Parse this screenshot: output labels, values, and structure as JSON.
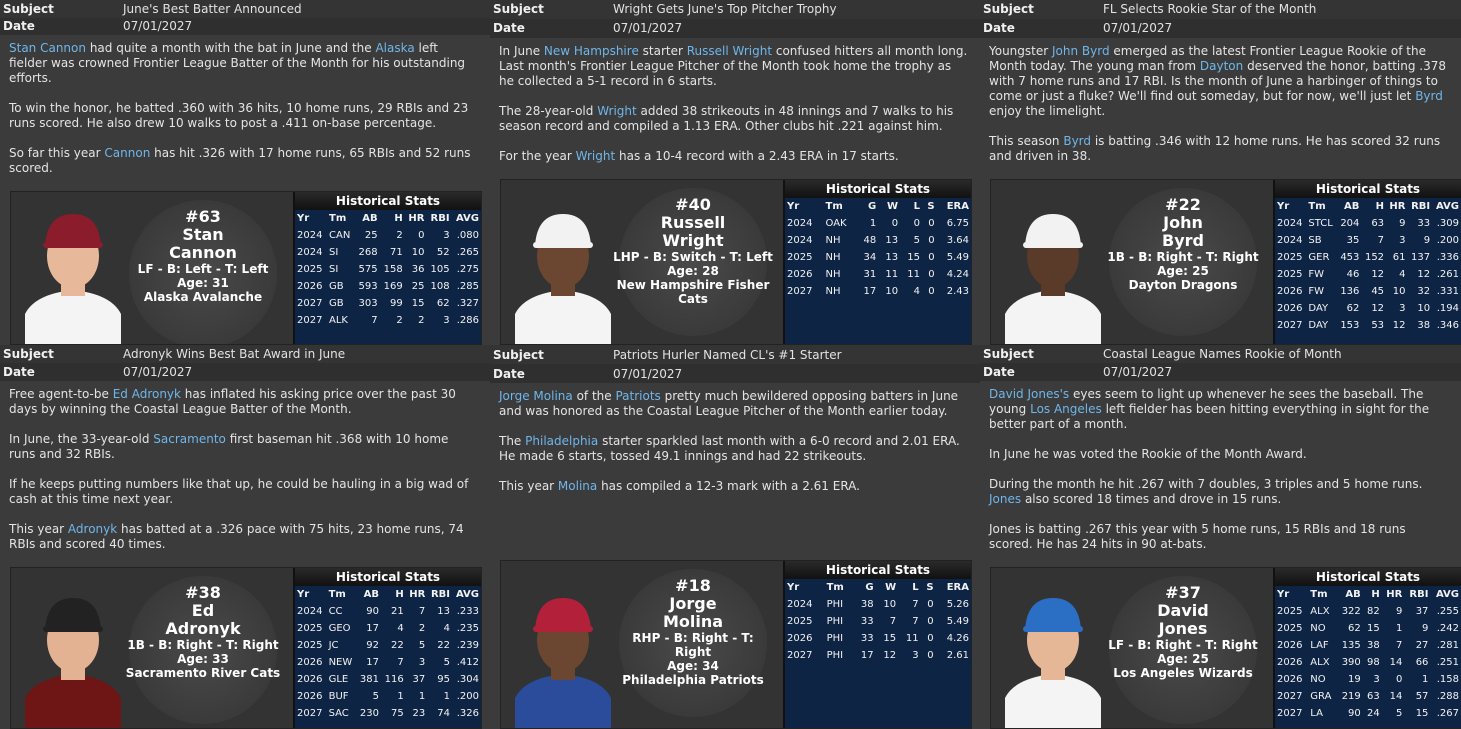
{
  "labels": {
    "subject": "Subject",
    "date": "Date",
    "stats_title": "Historical Stats"
  },
  "panels": [
    {
      "subject": "June's Best Batter Announced",
      "date": "07/01/2027",
      "paragraphs": [
        [
          {
            "text": "Stan Cannon",
            "link": true
          },
          {
            "text": " had quite a month with the bat in June and the "
          },
          {
            "text": "Alaska",
            "link": true
          },
          {
            "text": " left fielder was crowned Frontier League Batter of the Month for his outstanding efforts."
          }
        ],
        [
          {
            "text": "To win the honor, he batted .360 with 36 hits, 10 home runs, 29 RBIs and 23 runs scored. He also drew 10 walks to post a .411 on-base percentage."
          }
        ],
        [
          {
            "text": "So far this year "
          },
          {
            "text": "Cannon",
            "link": true
          },
          {
            "text": " has hit .326 with 17 home runs, 65 RBIs and 52 runs scored."
          }
        ]
      ],
      "card": {
        "number": "#63",
        "first": "Stan",
        "last": "Cannon",
        "position": "LF - B: Left - T: Left",
        "age": "Age: 31",
        "team": "Alaska Avalanche"
      },
      "stats": {
        "headers": [
          "Yr",
          "Tm",
          "AB",
          "H",
          "HR",
          "RBI",
          "AVG"
        ],
        "rows": [
          [
            "2024",
            "CAN",
            "25",
            "2",
            "0",
            "3",
            ".080"
          ],
          [
            "2024",
            "SI",
            "268",
            "71",
            "10",
            "52",
            ".265"
          ],
          [
            "2025",
            "SI",
            "575",
            "158",
            "36",
            "105",
            ".275"
          ],
          [
            "2026",
            "GB",
            "593",
            "169",
            "25",
            "108",
            ".285"
          ],
          [
            "2027",
            "GB",
            "303",
            "99",
            "15",
            "62",
            ".327"
          ],
          [
            "2027",
            "ALK",
            "7",
            "2",
            "2",
            "3",
            ".286"
          ]
        ]
      }
    },
    {
      "subject": "Wright Gets June's Top Pitcher Trophy",
      "date": "07/01/2027",
      "paragraphs": [
        [
          {
            "text": "In June "
          },
          {
            "text": "New Hampshire",
            "link": true
          },
          {
            "text": " starter "
          },
          {
            "text": "Russell Wright",
            "link": true
          },
          {
            "text": " confused hitters all month long. Last month's Frontier League Pitcher of the Month took home the trophy as he collected a 5-1 record in 6 starts."
          }
        ],
        [
          {
            "text": "The 28-year-old "
          },
          {
            "text": "Wright",
            "link": true
          },
          {
            "text": " added 38 strikeouts in 48 innings and 7 walks to his season record and compiled a 1.13 ERA. Other clubs hit .221 against him."
          }
        ],
        [
          {
            "text": "For the year "
          },
          {
            "text": "Wright",
            "link": true
          },
          {
            "text": " has a 10-4 record with a 2.43 ERA in 17 starts."
          }
        ]
      ],
      "card": {
        "number": "#40",
        "first": "Russell",
        "last": "Wright",
        "position": "LHP - B: Switch - T: Left",
        "age": "Age: 28",
        "team": "New Hampshire Fisher Cats"
      },
      "stats": {
        "headers": [
          "Yr",
          "Tm",
          "G",
          "W",
          "L",
          "S",
          "ERA"
        ],
        "rows": [
          [
            "2024",
            "OAK",
            "1",
            "0",
            "0",
            "0",
            "6.75"
          ],
          [
            "2024",
            "NH",
            "48",
            "13",
            "5",
            "0",
            "3.64"
          ],
          [
            "2025",
            "NH",
            "34",
            "13",
            "15",
            "0",
            "5.49"
          ],
          [
            "2026",
            "NH",
            "31",
            "11",
            "11",
            "0",
            "4.24"
          ],
          [
            "2027",
            "NH",
            "17",
            "10",
            "4",
            "0",
            "2.43"
          ]
        ]
      }
    },
    {
      "subject": "FL Selects Rookie Star of the Month",
      "date": "07/01/2027",
      "paragraphs": [
        [
          {
            "text": "Youngster "
          },
          {
            "text": "John Byrd",
            "link": true
          },
          {
            "text": " emerged as the latest Frontier League Rookie of the Month today. The young man from "
          },
          {
            "text": "Dayton",
            "link": true
          },
          {
            "text": " deserved the honor, batting .378 with 7 home runs and 17 RBI. Is the month of June a harbinger of things to come or just a fluke? We'll find out someday, but for now, we'll just let "
          },
          {
            "text": "Byrd",
            "link": true
          },
          {
            "text": " enjoy the limelight."
          }
        ],
        [
          {
            "text": "This season "
          },
          {
            "text": "Byrd",
            "link": true
          },
          {
            "text": " is batting .346 with 12 home runs. He has scored 32 runs and driven in 38."
          }
        ]
      ],
      "card": {
        "number": "#22",
        "first": "John",
        "last": "Byrd",
        "position": "1B - B: Right - T: Right",
        "age": "Age: 25",
        "team": "Dayton Dragons"
      },
      "stats": {
        "headers": [
          "Yr",
          "Tm",
          "AB",
          "H",
          "HR",
          "RBI",
          "AVG"
        ],
        "rows": [
          [
            "2024",
            "STCL",
            "204",
            "63",
            "9",
            "33",
            ".309"
          ],
          [
            "2024",
            "SB",
            "35",
            "7",
            "3",
            "9",
            ".200"
          ],
          [
            "2025",
            "GER",
            "453",
            "152",
            "61",
            "137",
            ".336"
          ],
          [
            "2025",
            "FW",
            "46",
            "12",
            "4",
            "12",
            ".261"
          ],
          [
            "2026",
            "FW",
            "136",
            "45",
            "10",
            "32",
            ".331"
          ],
          [
            "2026",
            "DAY",
            "62",
            "12",
            "3",
            "10",
            ".194"
          ],
          [
            "2027",
            "DAY",
            "153",
            "53",
            "12",
            "38",
            ".346"
          ]
        ]
      }
    },
    {
      "subject": "Adronyk Wins Best Bat Award in June",
      "date": "07/01/2027",
      "paragraphs": [
        [
          {
            "text": "Free agent-to-be "
          },
          {
            "text": "Ed Adronyk",
            "link": true
          },
          {
            "text": " has inflated his asking price over the past 30 days by winning the Coastal League Batter of the Month."
          }
        ],
        [
          {
            "text": "In June, the 33-year-old "
          },
          {
            "text": "Sacramento",
            "link": true
          },
          {
            "text": " first baseman hit .368 with 10 home runs and 32 RBIs."
          }
        ],
        [
          {
            "text": "If he keeps putting numbers like that up, he could be hauling in a big wad of cash at this time next year."
          }
        ],
        [
          {
            "text": "This year "
          },
          {
            "text": "Adronyk",
            "link": true
          },
          {
            "text": " has batted at a .326 pace with 75 hits, 23 home runs, 74 RBIs and scored 40 times."
          }
        ]
      ],
      "card": {
        "number": "#38",
        "first": "Ed",
        "last": "Adronyk",
        "position": "1B - B: Right - T: Right",
        "age": "Age: 33",
        "team": "Sacramento River Cats"
      },
      "stats": {
        "headers": [
          "Yr",
          "Tm",
          "AB",
          "H",
          "HR",
          "RBI",
          "AVG"
        ],
        "rows": [
          [
            "2024",
            "CC",
            "90",
            "21",
            "7",
            "13",
            ".233"
          ],
          [
            "2025",
            "GEO",
            "17",
            "4",
            "2",
            "4",
            ".235"
          ],
          [
            "2025",
            "JC",
            "92",
            "22",
            "5",
            "22",
            ".239"
          ],
          [
            "2026",
            "NEW",
            "17",
            "7",
            "3",
            "5",
            ".412"
          ],
          [
            "2026",
            "GLE",
            "381",
            "116",
            "37",
            "95",
            ".304"
          ],
          [
            "2026",
            "BUF",
            "5",
            "1",
            "1",
            "1",
            ".200"
          ],
          [
            "2027",
            "SAC",
            "230",
            "75",
            "23",
            "74",
            ".326"
          ]
        ]
      }
    },
    {
      "subject": "Patriots Hurler Named CL's #1 Starter",
      "date": "07/01/2027",
      "paragraphs": [
        [
          {
            "text": "Jorge Molina",
            "link": true
          },
          {
            "text": " of the "
          },
          {
            "text": "Patriots",
            "link": true
          },
          {
            "text": " pretty much bewildered opposing batters in June and was honored as the Coastal League Pitcher of the Month earlier today."
          }
        ],
        [
          {
            "text": "The "
          },
          {
            "text": "Philadelphia",
            "link": true
          },
          {
            "text": " starter sparkled last month with a 6-0 record and 2.01 ERA. He made 6 starts, tossed 49.1 innings and had 22 strikeouts."
          }
        ],
        [
          {
            "text": "This year "
          },
          {
            "text": "Molina",
            "link": true
          },
          {
            "text": " has compiled a 12-3 mark with a 2.61 ERA."
          }
        ]
      ],
      "card": {
        "number": "#18",
        "first": "Jorge",
        "last": "Molina",
        "position": "RHP - B: Right - T: Right",
        "age": "Age: 34",
        "team": "Philadelphia Patriots"
      },
      "stats": {
        "headers": [
          "Yr",
          "Tm",
          "G",
          "W",
          "L",
          "S",
          "ERA"
        ],
        "rows": [
          [
            "2024",
            "PHI",
            "38",
            "10",
            "7",
            "0",
            "5.26"
          ],
          [
            "2025",
            "PHI",
            "33",
            "7",
            "7",
            "0",
            "5.49"
          ],
          [
            "2026",
            "PHI",
            "33",
            "15",
            "11",
            "0",
            "4.26"
          ],
          [
            "2027",
            "PHI",
            "17",
            "12",
            "3",
            "0",
            "2.61"
          ]
        ]
      }
    },
    {
      "subject": "Coastal League Names Rookie of Month",
      "date": "07/01/2027",
      "paragraphs": [
        [
          {
            "text": "David Jones's",
            "link": true
          },
          {
            "text": " eyes seem to light up whenever he sees the baseball. The young "
          },
          {
            "text": "Los Angeles",
            "link": true
          },
          {
            "text": " left fielder has been hitting everything in sight for the better part of a month."
          }
        ],
        [
          {
            "text": "In June he was voted the Rookie of the Month Award."
          }
        ],
        [
          {
            "text": "During the month he hit .267 with 7 doubles, 3 triples and 5 home runs. "
          },
          {
            "text": "Jones",
            "link": true
          },
          {
            "text": " also scored 18 times and drove in 15 runs."
          }
        ],
        [
          {
            "text": "Jones is batting .267 this year with 5 home runs, 15 RBIs and 18 runs scored. He has 24 hits in 90 at-bats."
          }
        ]
      ],
      "card": {
        "number": "#37",
        "first": "David",
        "last": "Jones",
        "position": "LF - B: Right - T: Right",
        "age": "Age: 25",
        "team": "Los Angeles Wizards"
      },
      "stats": {
        "headers": [
          "Yr",
          "Tm",
          "AB",
          "H",
          "HR",
          "RBI",
          "AVG"
        ],
        "rows": [
          [
            "2025",
            "ALX",
            "322",
            "82",
            "9",
            "37",
            ".255"
          ],
          [
            "2025",
            "NO",
            "62",
            "15",
            "1",
            "9",
            ".242"
          ],
          [
            "2026",
            "LAF",
            "135",
            "38",
            "7",
            "27",
            ".281"
          ],
          [
            "2026",
            "ALX",
            "390",
            "98",
            "14",
            "66",
            ".251"
          ],
          [
            "2026",
            "NO",
            "19",
            "3",
            "0",
            "1",
            ".158"
          ],
          [
            "2027",
            "GRA",
            "219",
            "63",
            "14",
            "57",
            ".288"
          ],
          [
            "2027",
            "LA",
            "90",
            "24",
            "5",
            "15",
            ".267"
          ]
        ]
      }
    }
  ]
}
